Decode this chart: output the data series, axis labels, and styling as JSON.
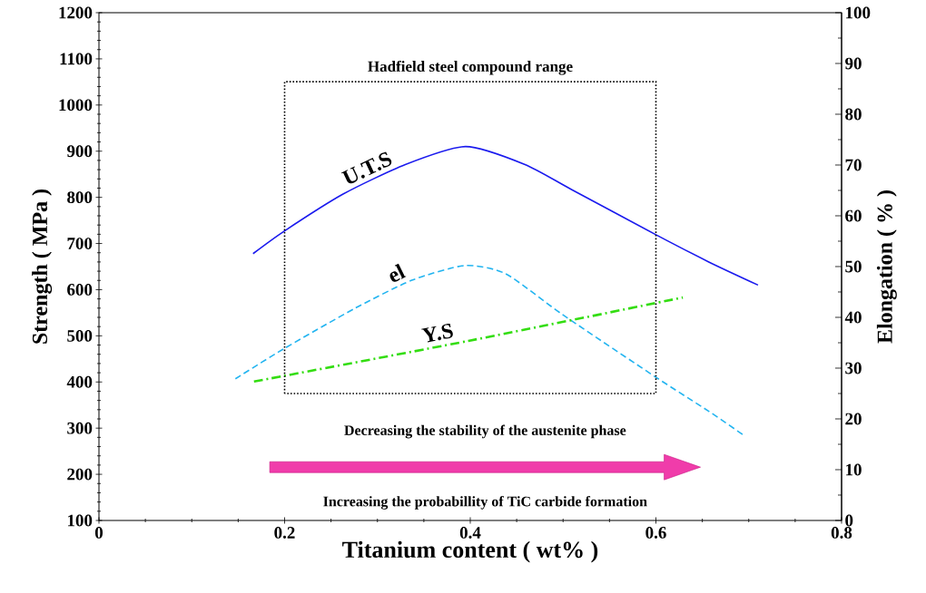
{
  "chart_data": {
    "type": "line",
    "xlabel": "Titanium content ( wt% )",
    "ylabel": "Strength ( MPa )",
    "y2label": "Elongation ( % )",
    "xlim": [
      0,
      0.8
    ],
    "xticks": [
      0,
      0.2,
      0.4,
      0.6,
      0.8
    ],
    "ylim": [
      100,
      1200
    ],
    "yticks": [
      100,
      200,
      300,
      400,
      500,
      600,
      700,
      800,
      900,
      1000,
      1100,
      1200
    ],
    "y2lim": [
      0,
      100
    ],
    "y2ticks": [
      0,
      10,
      20,
      30,
      40,
      50,
      60,
      70,
      80,
      90,
      100
    ],
    "series": [
      {
        "name": "U.T.S",
        "color": "#1a1aee",
        "line_style": "solid",
        "x": [
          0.166,
          0.199,
          0.263,
          0.33,
          0.395,
          0.459,
          0.509,
          0.6,
          0.657,
          0.71
        ],
        "values": [
          678,
          726,
          807,
          871,
          910,
          871,
          817,
          719,
          660,
          610
        ]
      },
      {
        "name": "el",
        "color": "#22b4f0",
        "line_style": "dashed",
        "axis": "y2",
        "x": [
          0.147,
          0.199,
          0.276,
          0.337,
          0.394,
          0.438,
          0.499,
          0.6,
          0.657,
          0.696
        ],
        "values": [
          27.9,
          33.8,
          41.8,
          47.3,
          50.2,
          48.6,
          40.6,
          28.2,
          21.5,
          16.6
        ]
      },
      {
        "name": "Y.S",
        "color": "#33dd11",
        "line_style": "dashdot",
        "x": [
          0.167,
          0.398,
          0.629
        ],
        "values": [
          401,
          489,
          583
        ]
      }
    ],
    "annotations": [
      "Decreasing the stability of the austenite phase",
      "Increasing the probabillity of TiC carbide formation",
      "Hadfield steel compound range"
    ],
    "legend": false,
    "grid": false,
    "marker": "none"
  }
}
